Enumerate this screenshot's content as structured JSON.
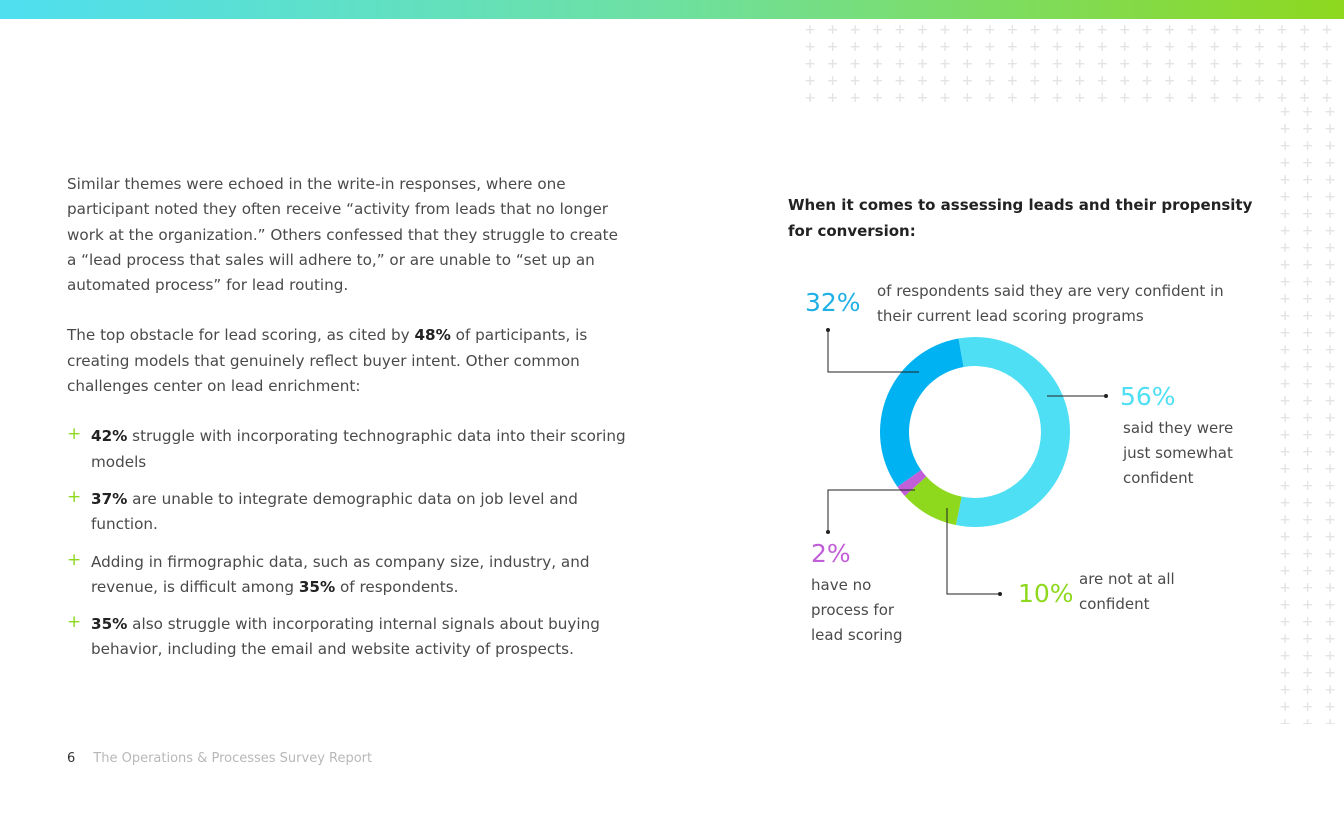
{
  "left": {
    "para1": "Similar themes were echoed in the write-in responses, where one participant noted they often receive “activity from leads that no longer work at the organization.” Others confessed that they struggle to create a “lead process that sales will adhere to,” or are unable to “set up an automated process” for lead routing.",
    "para2_pre": "The top obstacle for lead scoring, as cited by ",
    "para2_bold": "48%",
    "para2_post": " of participants, is creating models that genuinely reflect buyer intent. Other common challenges center on lead enrichment:",
    "bullets": [
      {
        "pre": "",
        "bold": "42%",
        "post": " struggle with incorporating technographic data into their scoring models"
      },
      {
        "pre": "",
        "bold": "37%",
        "post": " are unable to integrate demographic data on job level and function."
      },
      {
        "pre": "Adding in firmographic data, such as company size, industry, and revenue, is difficult among ",
        "bold": "35%",
        "post": " of respondents."
      },
      {
        "pre": "",
        "bold": "35%",
        "post": " also struggle with incorporating internal signals about buying behavior, including the email and website activity of prospects."
      }
    ],
    "bullet_icon": "plus-icon"
  },
  "chart_title": "When it comes to assessing leads and their propensity for conversion:",
  "chart_data": {
    "type": "pie",
    "donut": true,
    "slices": [
      {
        "value": 56,
        "label": "56%",
        "text": "said they were just somewhat confident",
        "color": "#4fdff5"
      },
      {
        "value": 10,
        "label": "10%",
        "text": "are not at all confident",
        "color": "#8ed81e"
      },
      {
        "value": 2,
        "label": "2%",
        "text": "have no process for lead scoring",
        "color": "#c15fd8"
      },
      {
        "value": 32,
        "label": "32%",
        "text": "of respondents said they are very confident in their current lead scoring programs",
        "color": "#00b2f2"
      }
    ]
  },
  "footer": {
    "page": "6",
    "title": "The Operations & Processes Survey Report"
  },
  "colors": {
    "gradient_start": "#4fdff0",
    "gradient_end": "#8ed81e"
  }
}
